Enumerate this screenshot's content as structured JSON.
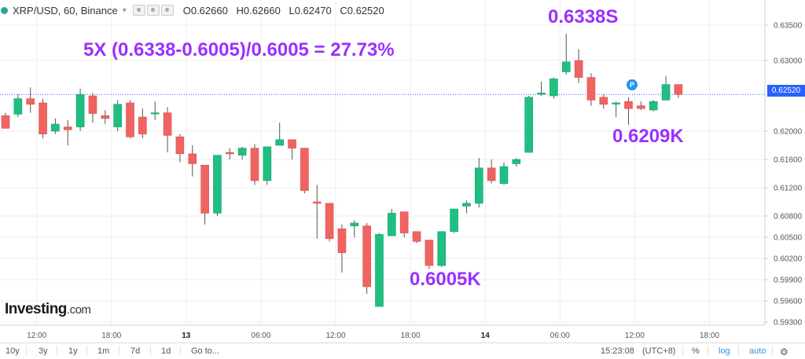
{
  "header": {
    "symbol": "XRP/USD, 60, Binance",
    "dot_color": "#26a69a",
    "open_label": "O",
    "open": "0.62660",
    "high_label": "H",
    "high": "0.62660",
    "low_label": "L",
    "low": "0.62470",
    "close_label": "C",
    "close": "0.62520"
  },
  "annotations": {
    "formula": "5X (0.6338-0.6005)/0.6005 = 27.73%",
    "high_label": "0.6338S",
    "low_label": "0.6005K",
    "mid_label": "0.6209K",
    "color": "#9b30ff"
  },
  "logo": {
    "main": "Investing",
    "suffix": ".com"
  },
  "price_tag": "0.62520",
  "marker_p": "P",
  "bottom": {
    "ranges": [
      "10y",
      "3y",
      "1y",
      "1m",
      "7d",
      "1d"
    ],
    "goto": "Go to...",
    "time": "15:23:08",
    "tz": "(UTC+8)",
    "pct": "%",
    "log": "log",
    "auto": "auto"
  },
  "colors": {
    "up": "#1fbf82",
    "down": "#ef6461",
    "grid": "#eeeeee",
    "lastline": "#2962ff",
    "wick": "#555555"
  },
  "chart_data": {
    "type": "candlestick",
    "interval": "60",
    "y_ticks": [
      "0.63500",
      "0.63000",
      "0.62520",
      "0.62000",
      "0.61600",
      "0.61200",
      "0.60800",
      "0.60500",
      "0.60200",
      "0.59900",
      "0.59600",
      "0.59300"
    ],
    "y_tick_values": [
      0.635,
      0.63,
      0.6252,
      0.62,
      0.616,
      0.612,
      0.608,
      0.605,
      0.602,
      0.599,
      0.596,
      0.593
    ],
    "x_ticks": [
      {
        "label": "12:00",
        "index": 3
      },
      {
        "label": "18:00",
        "index": 9
      },
      {
        "label": "13",
        "index": 15
      },
      {
        "label": "06:00",
        "index": 21
      },
      {
        "label": "12:00",
        "index": 27
      },
      {
        "label": "18:00",
        "index": 33
      },
      {
        "label": "14",
        "index": 39
      },
      {
        "label": "06:00",
        "index": 45
      },
      {
        "label": "12:00",
        "index": 51
      },
      {
        "label": "18:00",
        "index": 57
      }
    ],
    "last_price": 0.6252,
    "candles": [
      [
        0.6222,
        0.6204,
        0.6226,
        0.6204
      ],
      [
        0.6224,
        0.6246,
        0.6252,
        0.622
      ],
      [
        0.6246,
        0.6238,
        0.6262,
        0.6226
      ],
      [
        0.624,
        0.6196,
        0.6246,
        0.619
      ],
      [
        0.62,
        0.621,
        0.6218,
        0.6196
      ],
      [
        0.6206,
        0.6202,
        0.6216,
        0.618
      ],
      [
        0.6206,
        0.6252,
        0.626,
        0.62
      ],
      [
        0.625,
        0.6225,
        0.6254,
        0.6212
      ],
      [
        0.6222,
        0.6218,
        0.623,
        0.621
      ],
      [
        0.6206,
        0.6238,
        0.6244,
        0.62
      ],
      [
        0.624,
        0.6192,
        0.6244,
        0.619
      ],
      [
        0.622,
        0.6196,
        0.6232,
        0.619
      ],
      [
        0.6226,
        0.6226,
        0.6242,
        0.6216
      ],
      [
        0.6226,
        0.6194,
        0.6234,
        0.617
      ],
      [
        0.6192,
        0.6168,
        0.6196,
        0.6156
      ],
      [
        0.6168,
        0.6154,
        0.618,
        0.6136
      ],
      [
        0.6152,
        0.6084,
        0.6152,
        0.6068
      ],
      [
        0.6084,
        0.6166,
        0.6166,
        0.608
      ],
      [
        0.617,
        0.6168,
        0.6176,
        0.616
      ],
      [
        0.6166,
        0.6176,
        0.6178,
        0.616
      ],
      [
        0.6176,
        0.613,
        0.6182,
        0.6124
      ],
      [
        0.613,
        0.6178,
        0.6178,
        0.6124
      ],
      [
        0.618,
        0.6188,
        0.6212,
        0.6182
      ],
      [
        0.6188,
        0.6176,
        0.6188,
        0.616
      ],
      [
        0.6176,
        0.6116,
        0.6176,
        0.6112
      ],
      [
        0.61,
        0.6098,
        0.6124,
        0.6048
      ],
      [
        0.6098,
        0.6048,
        0.6098,
        0.6044
      ],
      [
        0.6062,
        0.6028,
        0.6068,
        0.6
      ],
      [
        0.6066,
        0.607,
        0.6074,
        0.605
      ],
      [
        0.6066,
        0.598,
        0.607,
        0.597
      ],
      [
        0.5952,
        0.6054,
        0.6056,
        0.5952
      ],
      [
        0.6052,
        0.6084,
        0.609,
        0.6052
      ],
      [
        0.6086,
        0.6056,
        0.6086,
        0.605
      ],
      [
        0.6058,
        0.6044,
        0.6058,
        0.6042
      ],
      [
        0.6046,
        0.601,
        0.6046,
        0.6005
      ],
      [
        0.601,
        0.6058,
        0.6058,
        0.6008
      ],
      [
        0.6058,
        0.609,
        0.609,
        0.6056
      ],
      [
        0.6094,
        0.6098,
        0.6102,
        0.6084
      ],
      [
        0.6098,
        0.6148,
        0.6162,
        0.6092
      ],
      [
        0.6148,
        0.613,
        0.616,
        0.6126
      ],
      [
        0.6126,
        0.615,
        0.6156,
        0.6124
      ],
      [
        0.6154,
        0.616,
        0.6162,
        0.615
      ],
      [
        0.617,
        0.6248,
        0.625,
        0.617
      ],
      [
        0.6254,
        0.6254,
        0.627,
        0.625
      ],
      [
        0.625,
        0.6274,
        0.6276,
        0.6246
      ],
      [
        0.6284,
        0.6298,
        0.6338,
        0.628
      ],
      [
        0.63,
        0.6276,
        0.6316,
        0.6268
      ],
      [
        0.6276,
        0.6244,
        0.6282,
        0.6236
      ],
      [
        0.6248,
        0.6238,
        0.6252,
        0.6232
      ],
      [
        0.624,
        0.624,
        0.6242,
        0.622
      ],
      [
        0.6242,
        0.6232,
        0.6248,
        0.6209
      ],
      [
        0.6236,
        0.6232,
        0.6242,
        0.623
      ],
      [
        0.623,
        0.6242,
        0.6244,
        0.6228
      ],
      [
        0.6244,
        0.6266,
        0.6278,
        0.6244
      ],
      [
        0.6266,
        0.6252,
        0.6266,
        0.6247
      ]
    ]
  }
}
